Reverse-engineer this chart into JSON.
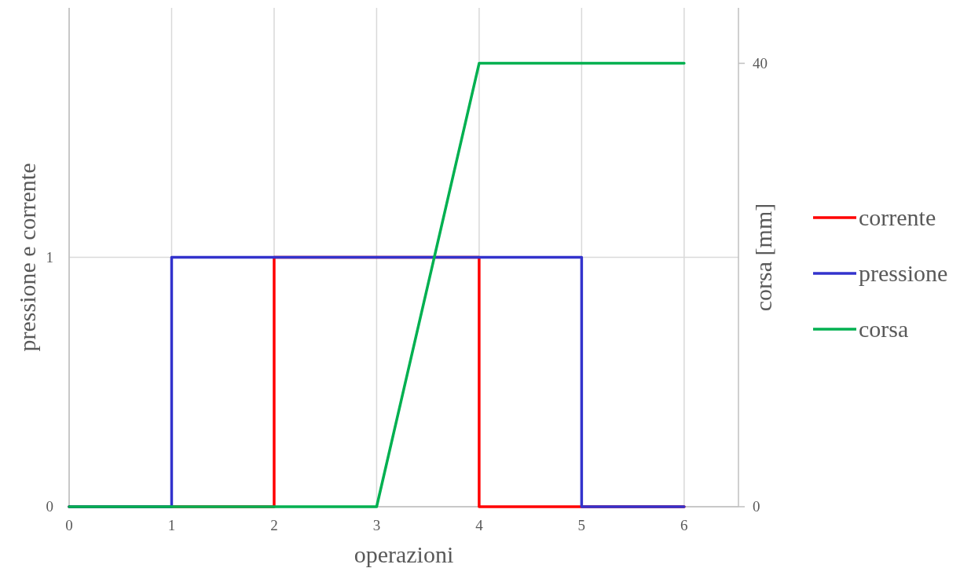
{
  "chart_data": {
    "type": "line",
    "xlabel": "operazioni",
    "ylabel": "pressione e corrente",
    "y2label": "corsa [mm]",
    "xlim": [
      0,
      6.53
    ],
    "xticks": [
      0,
      1,
      2,
      3,
      4,
      5,
      6
    ],
    "ylim": [
      0,
      2
    ],
    "yticks": [
      0,
      1
    ],
    "y2lim": [
      0,
      45
    ],
    "y2ticks": [
      0,
      40
    ],
    "grid": true,
    "legend": "right",
    "marker": "none",
    "line_style": "solid",
    "series": [
      {
        "name": "corrente",
        "color": "#ff0000",
        "x": [
          0,
          2,
          2,
          4,
          4,
          6
        ],
        "values": [
          0,
          0,
          1,
          1,
          0,
          0
        ]
      },
      {
        "name": "pressione",
        "color": "#3333cc",
        "x": [
          0,
          1,
          1,
          5,
          5,
          6
        ],
        "values": [
          0,
          0,
          1,
          1,
          0,
          0
        ]
      },
      {
        "name": "corsa",
        "color": "#00b050",
        "axis": "y2",
        "x": [
          0,
          3,
          4,
          6
        ],
        "values": [
          0,
          0,
          40,
          40
        ]
      }
    ]
  }
}
